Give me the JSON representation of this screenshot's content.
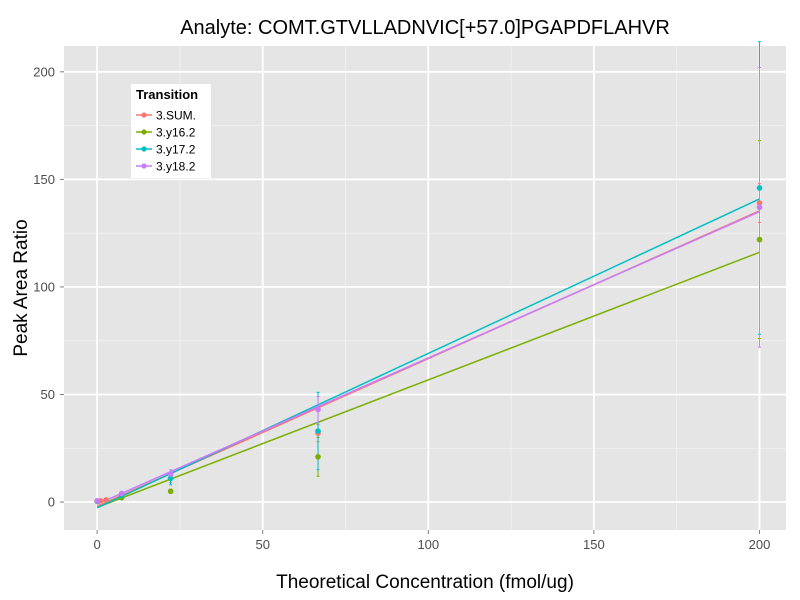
{
  "chart_data": {
    "type": "scatter",
    "title": "Analyte: COMT.GTVLLADNVIC[+57.0]PGAPDFLAHVR",
    "xlabel": "Theoretical Concentration (fmol/ug)",
    "ylabel": "Peak Area Ratio",
    "xlim": [
      -10,
      208
    ],
    "ylim": [
      -13,
      212
    ],
    "x_ticks": [
      0,
      50,
      100,
      150,
      200
    ],
    "y_ticks": [
      0,
      50,
      100,
      150,
      200
    ],
    "grid": true,
    "legend": {
      "title": "Transition",
      "position": "top-left"
    },
    "series": [
      {
        "name": "3.SUM.",
        "color": "#F8766D",
        "points": [
          {
            "x": 0,
            "y": 0.5
          },
          {
            "x": 1,
            "y": 0.6
          },
          {
            "x": 2.7,
            "y": 1
          },
          {
            "x": 7.4,
            "y": 3
          },
          {
            "x": 22.2,
            "y": 11
          },
          {
            "x": 66.7,
            "y": 32
          },
          {
            "x": 200,
            "y": 139
          }
        ],
        "errors": [
          0,
          0,
          0,
          0,
          2,
          4,
          9
        ],
        "fit": {
          "slope": 0.687,
          "intercept": -2
        }
      },
      {
        "name": "3.y16.2",
        "color": "#7CAE00",
        "points": [
          {
            "x": 0,
            "y": 0.3
          },
          {
            "x": 7.4,
            "y": 2
          },
          {
            "x": 22.2,
            "y": 5
          },
          {
            "x": 66.7,
            "y": 21
          },
          {
            "x": 200,
            "y": 122
          }
        ],
        "errors": [
          0,
          0,
          1,
          9,
          46
        ],
        "fit": {
          "slope": 0.593,
          "intercept": -2.5
        }
      },
      {
        "name": "3.y17.2",
        "color": "#00BFC4",
        "points": [
          {
            "x": 0,
            "y": 0.4
          },
          {
            "x": 7.4,
            "y": 3
          },
          {
            "x": 22.2,
            "y": 11
          },
          {
            "x": 66.7,
            "y": 33
          },
          {
            "x": 200,
            "y": 146
          }
        ],
        "errors": [
          0,
          0,
          3,
          18,
          68
        ],
        "fit": {
          "slope": 0.718,
          "intercept": -2.7
        }
      },
      {
        "name": "3.y18.2",
        "color": "#C77CFF",
        "points": [
          {
            "x": 0,
            "y": 0.5
          },
          {
            "x": 7.4,
            "y": 4
          },
          {
            "x": 22.2,
            "y": 13
          },
          {
            "x": 66.7,
            "y": 43
          },
          {
            "x": 200,
            "y": 137
          }
        ],
        "errors": [
          0,
          0,
          2,
          6,
          65
        ],
        "fit": {
          "slope": 0.68,
          "intercept": -1
        }
      }
    ]
  }
}
